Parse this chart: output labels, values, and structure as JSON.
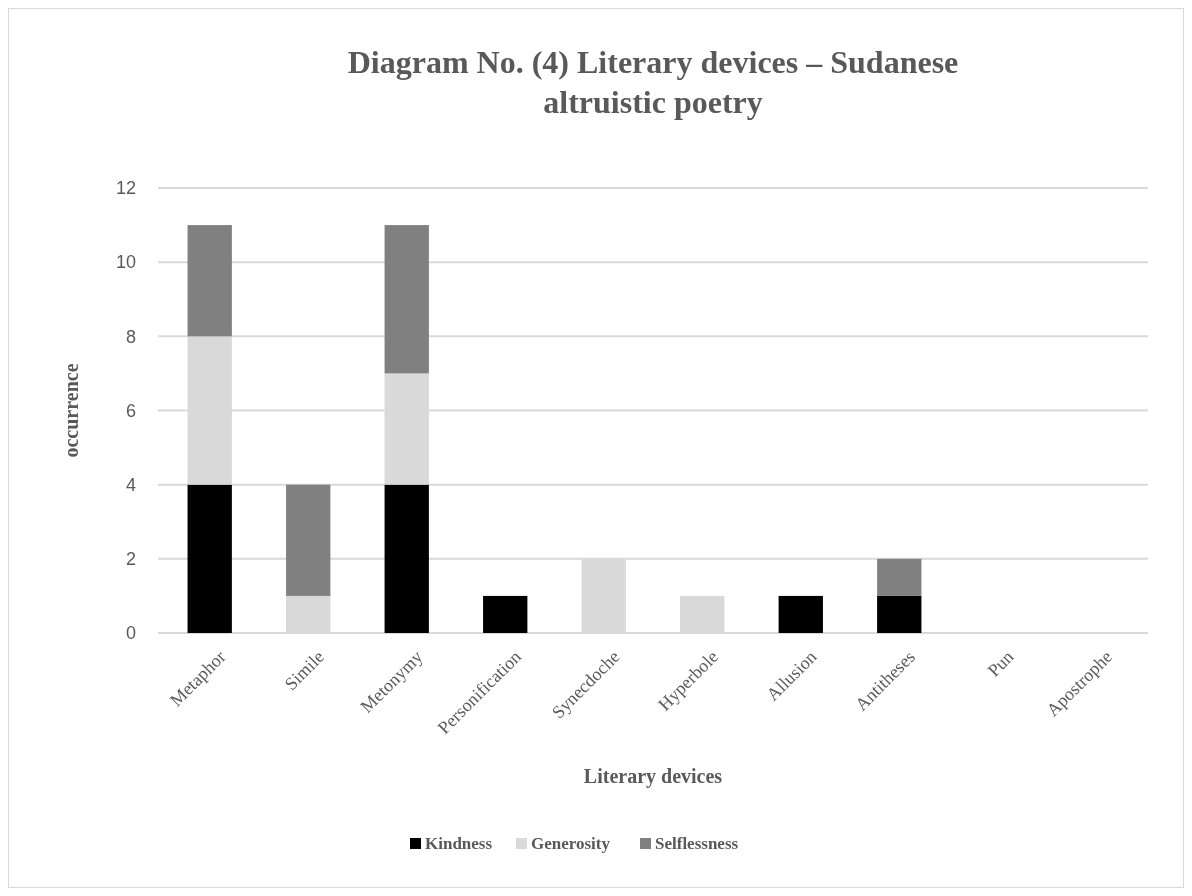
{
  "chart_data": {
    "type": "bar",
    "title": "Diagram No. (4) Literary devices – Sudanese altruistic poetry",
    "xlabel": "Literary devices",
    "ylabel": "occurrence",
    "categories": [
      "Metaphor",
      "Simile",
      "Metonymy",
      "Personification",
      "Synecdoche",
      "Hyperbole",
      "Allusion",
      "Antitheses",
      "Pun",
      "Apostrophe"
    ],
    "stacked": true,
    "series": [
      {
        "name": "Kindness",
        "color": "#000000",
        "values": [
          4,
          0,
          4,
          1,
          0,
          0,
          1,
          1,
          0,
          0
        ]
      },
      {
        "name": "Generosity",
        "color": "#d9d9d9",
        "values": [
          4,
          1,
          3,
          0,
          2,
          1,
          0,
          0,
          0,
          0
        ]
      },
      {
        "name": "Selflessness",
        "color": "#808080",
        "values": [
          3,
          3,
          4,
          0,
          0,
          0,
          0,
          1,
          0,
          0
        ]
      }
    ],
    "ylim": [
      0,
      12
    ],
    "yticks": [
      0,
      2,
      4,
      6,
      8,
      10,
      12
    ],
    "grid": "y",
    "legend": "bottom"
  }
}
